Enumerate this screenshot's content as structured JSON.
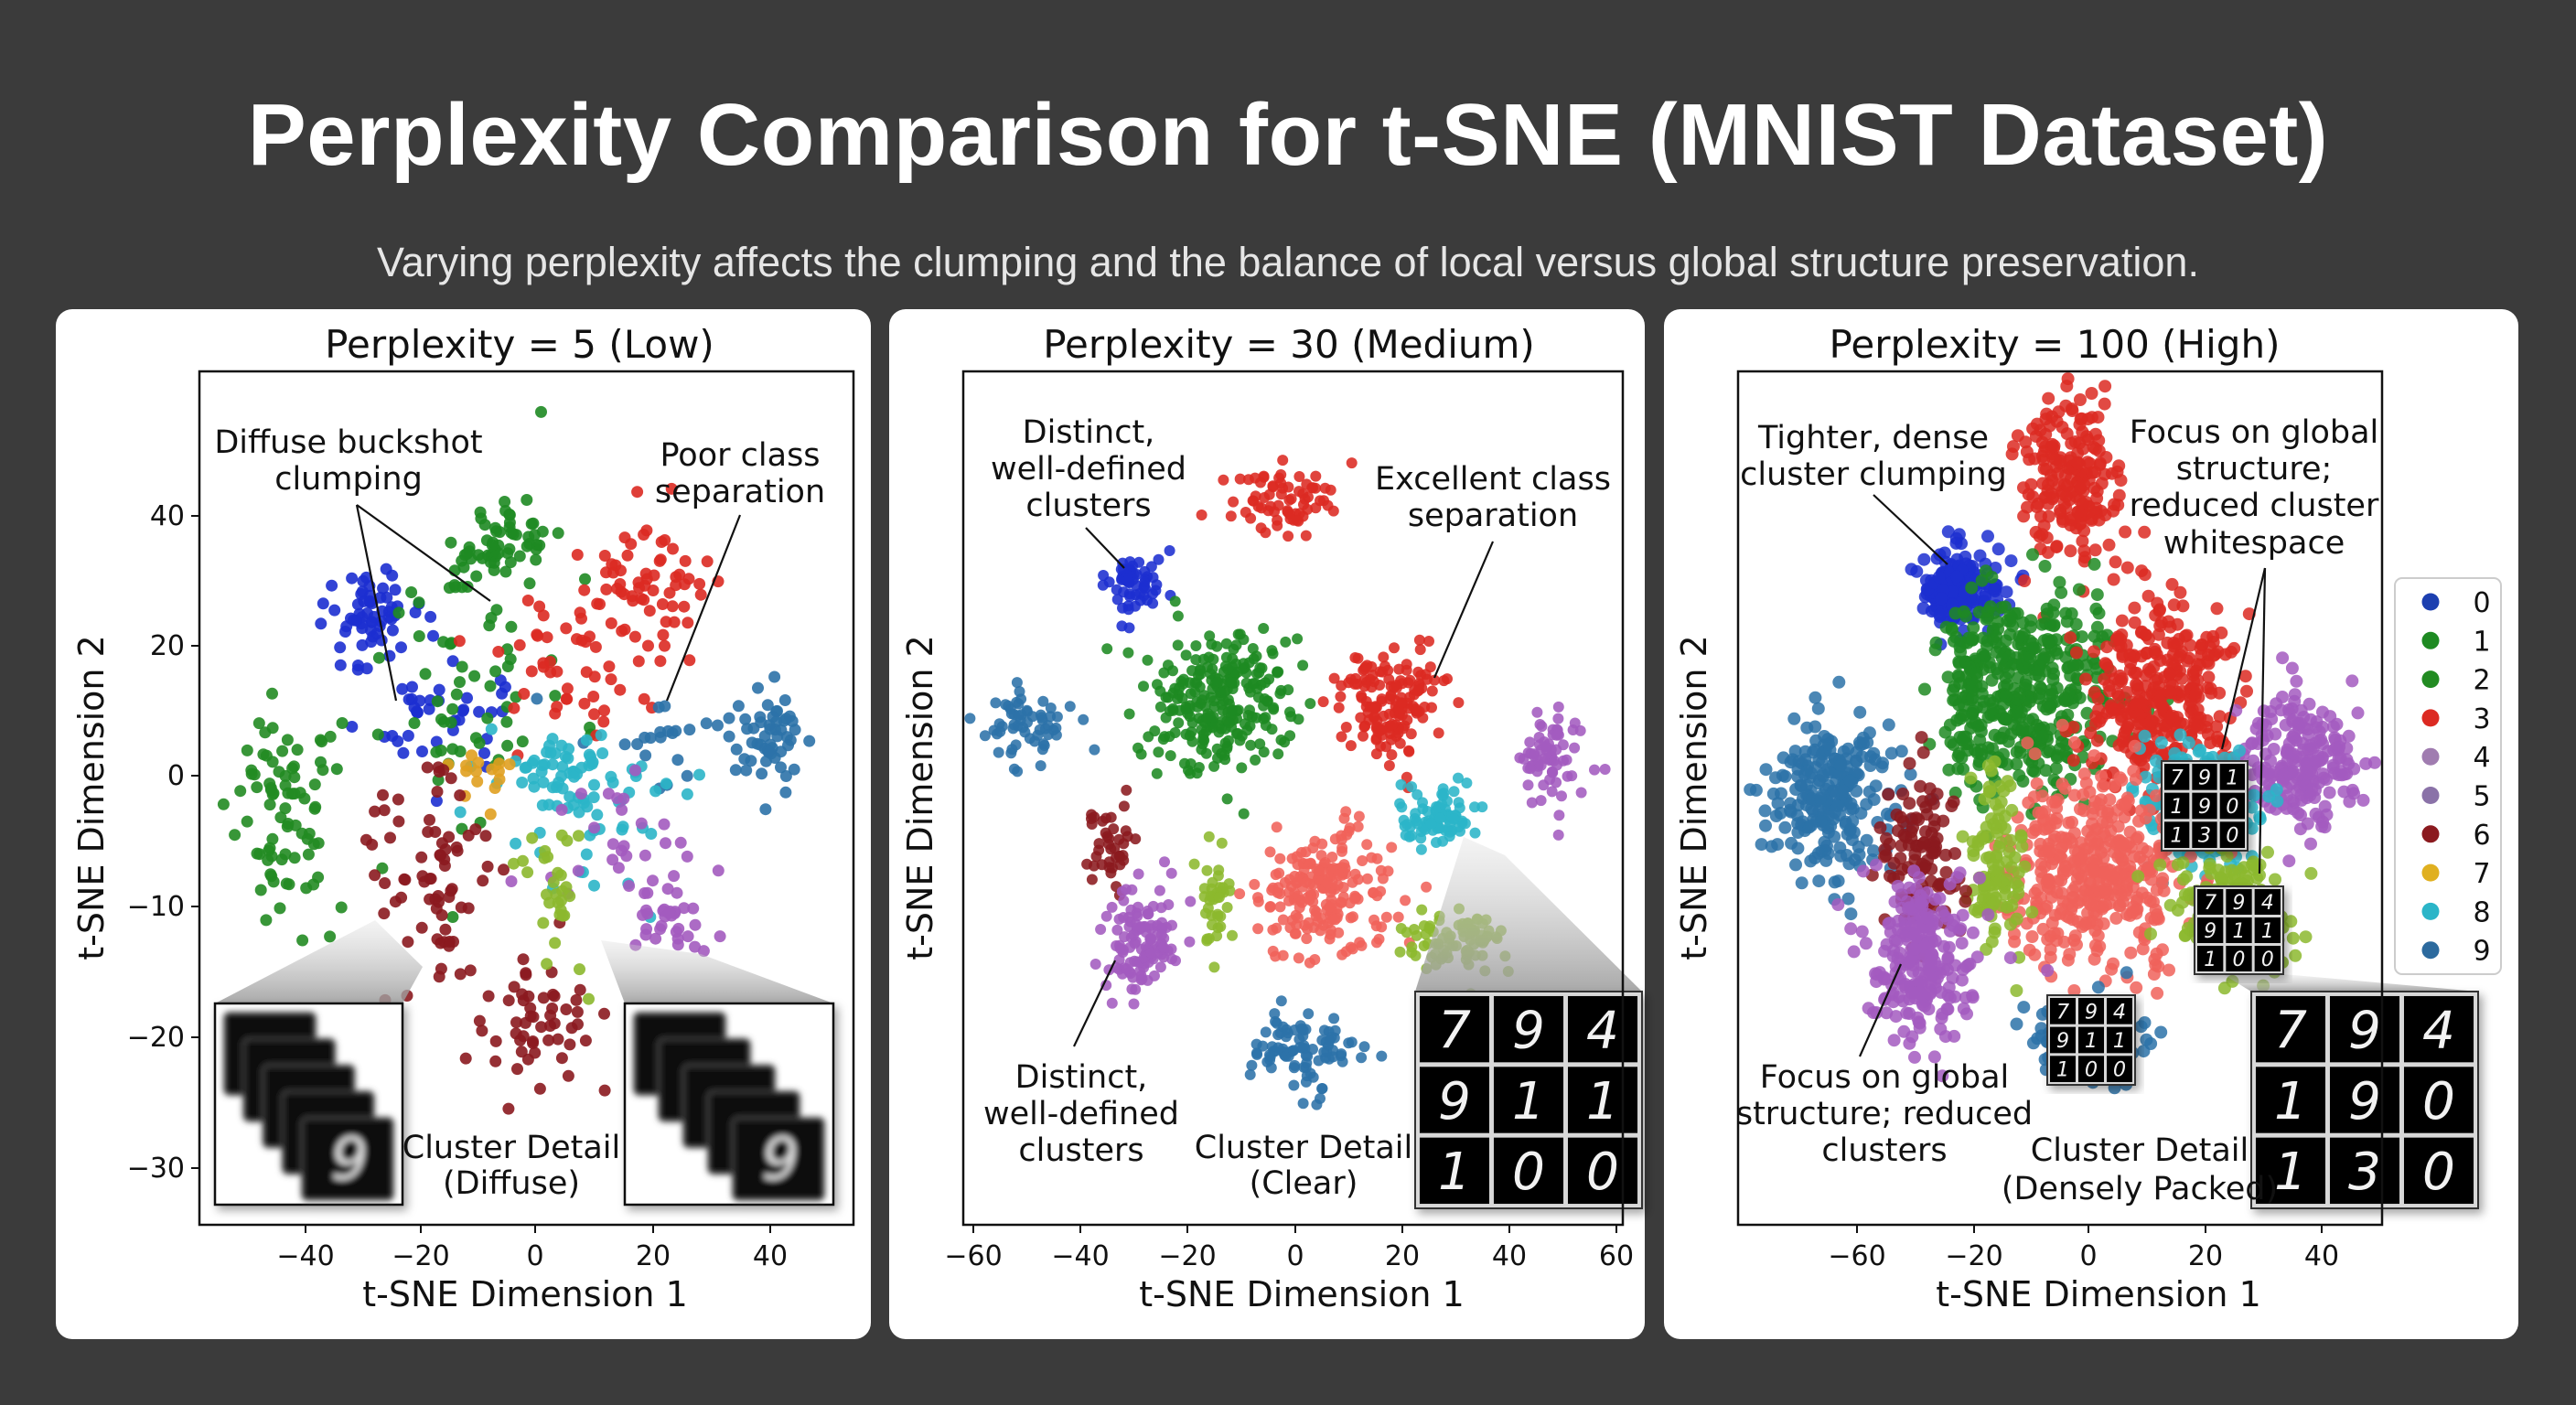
{
  "title": "Perplexity Comparison for t-SNE (MNIST Dataset)",
  "subtitle": "Varying perplexity affects the clumping and the balance of local versus global structure preservation.",
  "colors": {
    "background": "#3b3b3b",
    "card": "#ffffff",
    "salmon_cluster": "#f0625a",
    "lime_cluster": "#8cb82e"
  },
  "legend": {
    "placement": "right of third plot",
    "entries": [
      {
        "label": "0",
        "color": "#1c3fb0"
      },
      {
        "label": "1",
        "color": "#1e8a22"
      },
      {
        "label": "2",
        "color": "#228b22"
      },
      {
        "label": "3",
        "color": "#dc2a22"
      },
      {
        "label": "4",
        "color": "#a07cb0"
      },
      {
        "label": "5",
        "color": "#8a72a8"
      },
      {
        "label": "6",
        "color": "#8b1a1f"
      },
      {
        "label": "7",
        "color": "#e0b020"
      },
      {
        "label": "8",
        "color": "#2bb5c8"
      },
      {
        "label": "9",
        "color": "#2c6a9e"
      }
    ]
  },
  "chart_data": [
    {
      "type": "scatter",
      "title": "Perplexity = 5 (Low)",
      "xlabel": "t-SNE Dimension 1",
      "ylabel": "t-SNE Dimension 2",
      "xticks": [
        -40,
        -20,
        0,
        20,
        40
      ],
      "yticks": [
        40,
        20,
        0,
        -10,
        -20,
        -30
      ],
      "grid": false,
      "clusters": [
        {
          "color": "#1c2fd0",
          "center": [
            -29,
            23
          ],
          "sd": [
            4,
            4
          ],
          "n": 60
        },
        {
          "color": "#1c2fd0",
          "center": [
            -18,
            10
          ],
          "sd": [
            6,
            6
          ],
          "n": 40
        },
        {
          "color": "#1e8a22",
          "center": [
            -6,
            36
          ],
          "sd": [
            5,
            3
          ],
          "n": 60
        },
        {
          "color": "#1e8a22",
          "center": [
            -14,
            12
          ],
          "sd": [
            9,
            9
          ],
          "n": 60
        },
        {
          "color": "#228b22",
          "center": [
            -45,
            -1
          ],
          "sd": [
            4,
            5
          ],
          "n": 60
        },
        {
          "color": "#228b22",
          "center": [
            -40,
            -6
          ],
          "sd": [
            5,
            5
          ],
          "n": 20
        },
        {
          "color": "#dc2a22",
          "center": [
            18,
            29
          ],
          "sd": [
            6,
            5
          ],
          "n": 70
        },
        {
          "color": "#dc2a22",
          "center": [
            4,
            16
          ],
          "sd": [
            7,
            7
          ],
          "n": 40
        },
        {
          "color": "#2c72a8",
          "center": [
            40,
            5
          ],
          "sd": [
            3.5,
            4
          ],
          "n": 50
        },
        {
          "color": "#2c72a8",
          "center": [
            25,
            5
          ],
          "sd": [
            8,
            4
          ],
          "n": 25
        },
        {
          "color": "#2bb5c8",
          "center": [
            8,
            -1
          ],
          "sd": [
            7,
            4
          ],
          "n": 90
        },
        {
          "color": "#e0a020",
          "center": [
            -10,
            1
          ],
          "sd": [
            3,
            2
          ],
          "n": 15
        },
        {
          "color": "#8b1a1f",
          "center": [
            -19,
            -8
          ],
          "sd": [
            6,
            4
          ],
          "n": 70
        },
        {
          "color": "#8b1a1f",
          "center": [
            0,
            -19
          ],
          "sd": [
            5,
            3
          ],
          "n": 55
        },
        {
          "color": "#a35bbf",
          "center": [
            24,
            -10
          ],
          "sd": [
            4,
            2.5
          ],
          "n": 40
        },
        {
          "color": "#a35bbf",
          "center": [
            15,
            -6
          ],
          "sd": [
            6,
            4
          ],
          "n": 20
        },
        {
          "color": "#8cb82e",
          "center": [
            3,
            -8
          ],
          "sd": [
            3,
            3
          ],
          "n": 30
        },
        {
          "color": "#1e8a22",
          "center": [
            1,
            56
          ],
          "sd": [
            0,
            0
          ],
          "n": 1
        }
      ],
      "annotations": [
        {
          "lines": [
            "Diffuse buckshot",
            "clumping"
          ]
        },
        {
          "lines": [
            "Poor class",
            "separation"
          ]
        },
        {
          "lines": [
            "Cluster Detail",
            "(Diffuse)"
          ]
        }
      ],
      "insets": [
        {
          "style": "blurred stack",
          "digit": "9"
        },
        {
          "style": "blurred stack",
          "digit": "9"
        }
      ]
    },
    {
      "type": "scatter",
      "title": "Perplexity = 30 (Medium)",
      "xlabel": "t-SNE Dimension 1",
      "ylabel": "t-SNE Dimension 2",
      "xticks": [
        -60,
        -40,
        -20,
        0,
        20,
        40,
        60
      ],
      "yticks": [],
      "grid": false,
      "clusters": [
        {
          "color": "#1c2fd0",
          "center": [
            -30,
            40
          ],
          "sd": [
            3,
            3
          ],
          "n": 60
        },
        {
          "color": "#dc2a22",
          "center": [
            -3,
            56
          ],
          "sd": [
            5,
            3.5
          ],
          "n": 70
        },
        {
          "color": "#1e8a22",
          "center": [
            -14.6,
            18
          ],
          "sd": [
            7,
            7
          ],
          "n": 250
        },
        {
          "color": "#dc2a22",
          "center": [
            18,
            18
          ],
          "sd": [
            5,
            5
          ],
          "n": 150
        },
        {
          "color": "#2c72a8",
          "center": [
            -49,
            14
          ],
          "sd": [
            4,
            3.5
          ],
          "n": 60
        },
        {
          "color": "#a35bbf",
          "center": [
            47.5,
            7
          ],
          "sd": [
            3,
            4
          ],
          "n": 70
        },
        {
          "color": "#2bb5c8",
          "center": [
            26.7,
            -3.7
          ],
          "sd": [
            3.5,
            3
          ],
          "n": 80
        },
        {
          "color": "#8b1a1f",
          "center": [
            -34.6,
            -8
          ],
          "sd": [
            2.5,
            4
          ],
          "n": 40
        },
        {
          "color": "#a35bbf",
          "center": [
            -29,
            -26.6
          ],
          "sd": [
            3.5,
            5
          ],
          "n": 120
        },
        {
          "color": "#8cb82e",
          "center": [
            -14.6,
            -20.5
          ],
          "sd": [
            1.5,
            5
          ],
          "n": 40
        },
        {
          "color": "#f0625a",
          "center": [
            5,
            -18
          ],
          "sd": [
            6,
            6
          ],
          "n": 200
        },
        {
          "color": "#8cb82e",
          "center": [
            29.5,
            -26.6
          ],
          "sd": [
            5,
            3
          ],
          "n": 80
        },
        {
          "color": "#2c72a8",
          "center": [
            0.7,
            -46.5
          ],
          "sd": [
            5,
            3.5
          ],
          "n": 90
        }
      ],
      "annotations": [
        {
          "lines": [
            "Distinct,",
            "well-defined",
            "clusters"
          ]
        },
        {
          "lines": [
            "Excellent class",
            "separation"
          ]
        },
        {
          "lines": [
            "Distinct,",
            "well-defined",
            "clusters"
          ]
        },
        {
          "lines": [
            "Cluster Detail",
            "(Clear)"
          ]
        }
      ],
      "insets": [
        {
          "style": "digit grid",
          "digits": [
            [
              "7",
              "9",
              "4"
            ],
            [
              "9",
              "1",
              "1"
            ],
            [
              "1",
              "0",
              "0"
            ]
          ]
        }
      ]
    },
    {
      "type": "scatter",
      "title": "Perplexity = 100 (High)",
      "xlabel": "t-SNE Dimension 1",
      "ylabel": "t-SNE Dimension 2",
      "xticks": [
        -60,
        -20,
        0,
        20,
        40
      ],
      "yticks": [],
      "grid": false,
      "clusters": [
        {
          "color": "#1c2fd0",
          "center": [
            -26,
            36
          ],
          "sd": [
            6,
            3.2
          ],
          "n": 200
        },
        {
          "color": "#dc2a22",
          "center": [
            -3,
            54.7
          ],
          "sd": [
            4.5,
            6.9
          ],
          "n": 200
        },
        {
          "color": "#1e8a22",
          "center": [
            -11.5,
            17.8
          ],
          "sd": [
            8.5,
            8.6
          ],
          "n": 450
        },
        {
          "color": "#dc2a22",
          "center": [
            12.2,
            17.8
          ],
          "sd": [
            6,
            8
          ],
          "n": 330
        },
        {
          "color": "#a35bbf",
          "center": [
            35.7,
            6.3
          ],
          "sd": [
            5,
            5.7
          ],
          "n": 220
        },
        {
          "color": "#2c72a8",
          "center": [
            -67.5,
            -0.5
          ],
          "sd": [
            12,
            6.3
          ],
          "n": 240
        },
        {
          "color": "#2bb5c8",
          "center": [
            17.7,
            -1.7
          ],
          "sd": [
            5.2,
            5.2
          ],
          "n": 160
        },
        {
          "color": "#f0625a",
          "center": [
            0.8,
            -13
          ],
          "sd": [
            7.6,
            8.6
          ],
          "n": 420
        },
        {
          "color": "#8cb82e",
          "center": [
            -16.3,
            -12
          ],
          "sd": [
            2.4,
            7.5
          ],
          "n": 110
        },
        {
          "color": "#8cb82e",
          "center": [
            25.3,
            -19
          ],
          "sd": [
            5.2,
            5.2
          ],
          "n": 150
        },
        {
          "color": "#8b1a1f",
          "center": [
            -37.5,
            -9.8
          ],
          "sd": [
            6.6,
            7.5
          ],
          "n": 110
        },
        {
          "color": "#a35bbf",
          "center": [
            -37.5,
            -28
          ],
          "sd": [
            8.6,
            6.9
          ],
          "n": 250
        },
        {
          "color": "#2c72a8",
          "center": [
            0,
            -41.9
          ],
          "sd": [
            4.7,
            3.4
          ],
          "n": 130
        }
      ],
      "annotations": [
        {
          "lines": [
            "Tighter, dense",
            "cluster clumping"
          ]
        },
        {
          "lines": [
            "Focus on global",
            "structure;",
            "reduced cluster",
            "whitespace"
          ]
        },
        {
          "lines": [
            "Focus on global",
            "structure; reduced",
            "clusters"
          ]
        },
        {
          "lines": [
            "Cluster Detail",
            "(Densely Packed)"
          ]
        }
      ],
      "insets": [
        {
          "style": "digit grid",
          "digits": [
            [
              "7",
              "9",
              "1"
            ],
            [
              "1",
              "9",
              "0"
            ],
            [
              "1",
              "3",
              "0"
            ]
          ]
        },
        {
          "style": "digit grid",
          "digits": [
            [
              "7",
              "9",
              "4"
            ],
            [
              "9",
              "1",
              "1"
            ],
            [
              "1",
              "0",
              "0"
            ]
          ]
        },
        {
          "style": "digit grid",
          "digits": [
            [
              "7",
              "9",
              "4"
            ],
            [
              "9",
              "1",
              "1"
            ],
            [
              "1",
              "0",
              "0"
            ]
          ]
        },
        {
          "style": "digit grid",
          "digits": [
            [
              "7",
              "9",
              "4"
            ],
            [
              "1",
              "9",
              "0"
            ],
            [
              "1",
              "3",
              "0"
            ]
          ]
        }
      ]
    }
  ]
}
